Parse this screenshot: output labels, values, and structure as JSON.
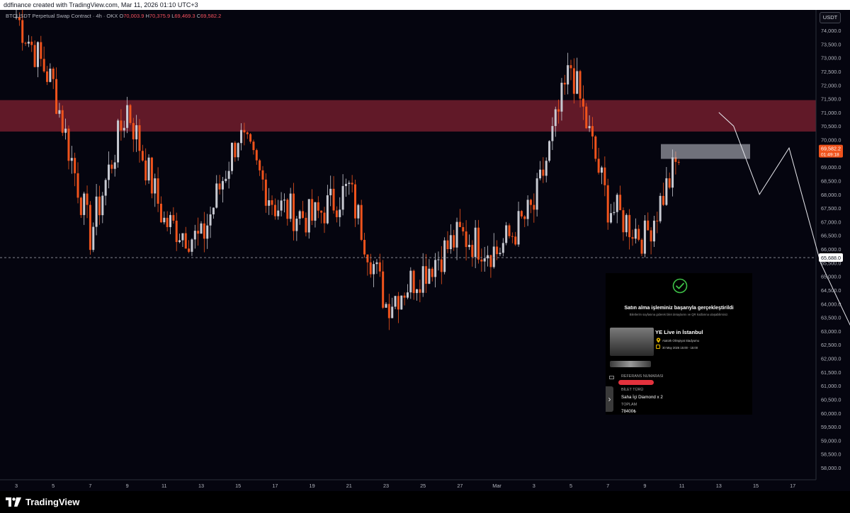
{
  "header": {
    "created_text": "ddfinance created with TradingView.com, Mar 11, 2026 01:10 UTC+3"
  },
  "legend": {
    "symbol": "BTCUSDT Perpetual Swap Contract · 4h · OKX",
    "o_label": "O",
    "o_value": "70,003.9",
    "h_label": "H",
    "h_value": "70,375.9",
    "l_label": "L",
    "l_value": "69,469.3",
    "c_label": "C",
    "c_value": "69,582.2"
  },
  "currency": "USDT",
  "colors": {
    "background": "#05050f",
    "up": "#c7c9d1",
    "down": "#f0531c",
    "resistance_zone": "#6b1c2b",
    "support_line": "#9598a1",
    "price_tag": "#f0531c"
  },
  "chart_data": {
    "type": "candlestick",
    "timeframe": "4h",
    "ylim": [
      57500,
      74500
    ],
    "y_ticks": [
      "74,000.0",
      "73,500.0",
      "73,000.0",
      "72,500.0",
      "72,000.0",
      "71,500.0",
      "71,000.0",
      "70,500.0",
      "70,000.0",
      "69,500.0",
      "69,000.0",
      "68,500.0",
      "68,000.0",
      "67,500.0",
      "67,000.0",
      "66,500.0",
      "66,000.0",
      "65,500.0",
      "65,000.0",
      "64,500.0",
      "64,000.0",
      "63,500.0",
      "63,000.0",
      "62,500.0",
      "62,000.0",
      "61,500.0",
      "61,000.0",
      "60,500.0",
      "60,000.0",
      "59,500.0",
      "59,000.0",
      "58,500.0",
      "58,000.0"
    ],
    "x_ticks": [
      "3",
      "5",
      "7",
      "9",
      "11",
      "13",
      "15",
      "17",
      "19",
      "21",
      "23",
      "25",
      "27",
      "Mar",
      "3",
      "5",
      "7",
      "9",
      "11",
      "13",
      "15",
      "17"
    ],
    "current_price": "69,582.2",
    "countdown": "01:49:18",
    "horizontal_level": "65,688.0",
    "hidden_label": "65,500.0",
    "resistance_zone": [
      70300,
      71450
    ],
    "target_box": [
      69300,
      69840
    ],
    "anchor_points": [
      {
        "tick": "3",
        "price": 74500
      },
      {
        "tick": "5",
        "price": 72000
      },
      {
        "tick": "7",
        "price": 66500
      },
      {
        "tick": "9",
        "price": 71200
      },
      {
        "tick": "11",
        "price": 67000
      },
      {
        "tick": "13",
        "price": 66300
      },
      {
        "tick": "15",
        "price": 70200
      },
      {
        "tick": "17",
        "price": 67600
      },
      {
        "tick": "19",
        "price": 67100
      },
      {
        "tick": "21",
        "price": 68200
      },
      {
        "tick": "23",
        "price": 64000
      },
      {
        "tick": "25",
        "price": 65200
      },
      {
        "tick": "27",
        "price": 66500
      },
      {
        "tick": "Mar",
        "price": 65900
      },
      {
        "tick": "3",
        "price": 67500
      },
      {
        "tick": "5",
        "price": 72700
      },
      {
        "tick": "7",
        "price": 67600
      },
      {
        "tick": "9",
        "price": 66400
      },
      {
        "tick": "11",
        "price": 69580
      }
    ],
    "projection": [
      {
        "tick": "11",
        "price": 71000
      },
      {
        "tick": "11",
        "price": 70500
      },
      {
        "tick": "13",
        "price": 68000
      },
      {
        "tick": "13",
        "price": 69700
      },
      {
        "tick": "15",
        "price": 65500
      },
      {
        "tick": "17",
        "price": 61800
      }
    ]
  },
  "purchase_card": {
    "title": "Satın alma işleminiz başarıyla gerçekleştirildi",
    "subtitle": "Biletlerim sayfasına giderek bilet detaylarını ve QR kodlarına ulaşabilirsiniz.",
    "event": "YE Live in İstanbul",
    "venue": "Atatürk Olimpiyat Stadyumu",
    "date": "30 May 2026 15:00 - 15:00",
    "ref_label": "REFERANS NUMARASI",
    "type_label": "BİLET TÜRÜ",
    "type_value": "Saha İçi Diamond x 2",
    "total_label": "TOPLAM",
    "total_value": "78400₺"
  },
  "brand": {
    "name": "TradingView"
  }
}
